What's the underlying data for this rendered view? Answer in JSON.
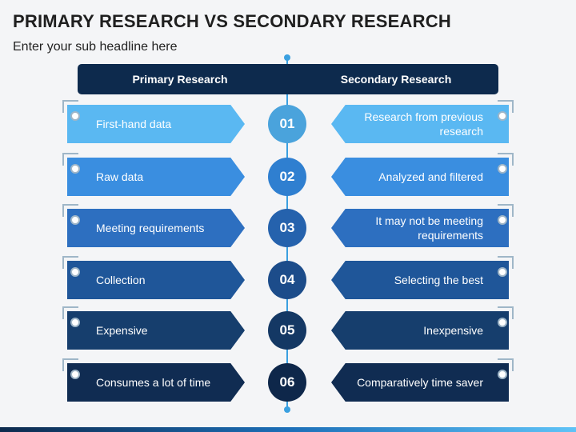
{
  "title": "PRIMARY RESEARCH VS SECONDARY RESEARCH",
  "subtitle": "Enter your sub headline here",
  "header": {
    "left": "Primary Research",
    "right": "Secondary Research"
  },
  "rows": [
    {
      "num": "01",
      "left": "First-hand data",
      "right": "Research from previous research",
      "color": "#5ab8f2",
      "circle": "#4aa3dc"
    },
    {
      "num": "02",
      "left": "Raw data",
      "right": "Analyzed and filtered",
      "color": "#3a8ee0",
      "circle": "#2f7fd0"
    },
    {
      "num": "03",
      "left": "Meeting requirements",
      "right": "It may not be meeting requirements",
      "color": "#2d6fc0",
      "circle": "#2562ad"
    },
    {
      "num": "04",
      "left": "Collection",
      "right": "Selecting the best",
      "color": "#1f5699",
      "circle": "#1c4c8a"
    },
    {
      "num": "05",
      "left": "Expensive",
      "right": "Inexpensive",
      "color": "#163e6d",
      "circle": "#143864"
    },
    {
      "num": "06",
      "left": "Consumes a lot of time",
      "right": "Comparatively time saver",
      "color": "#102c52",
      "circle": "#0e274a"
    }
  ]
}
